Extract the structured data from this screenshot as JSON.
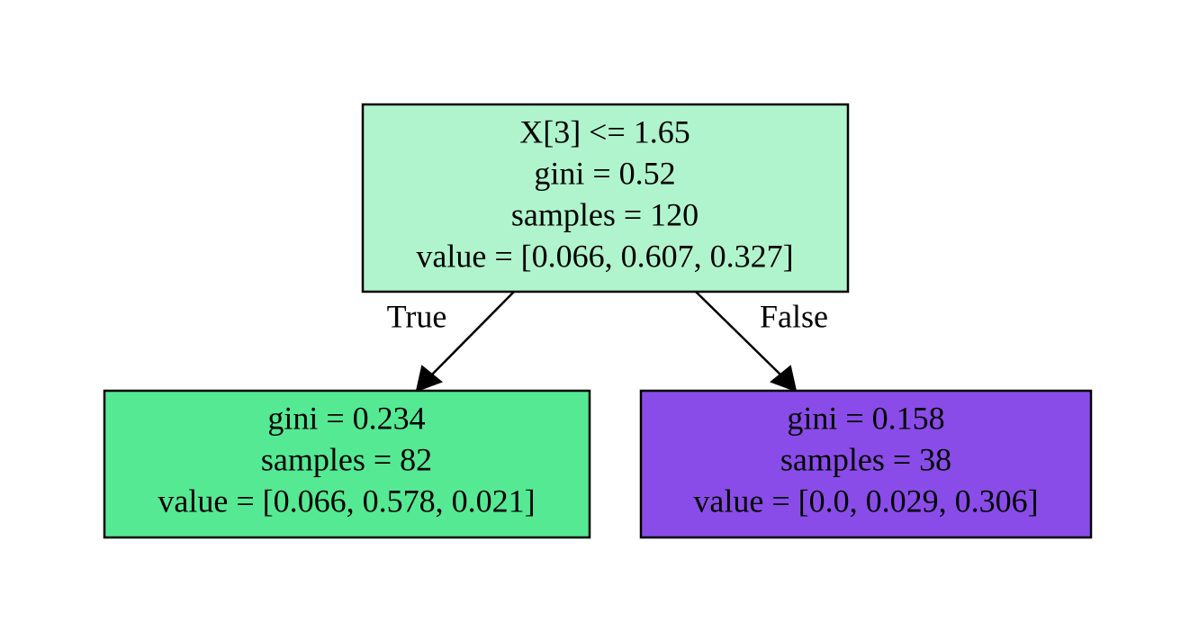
{
  "nodes": [
    {
      "lines": [
        "X[3] <= 1.65",
        "gini = 0.52",
        "samples = 120",
        "value = [0.066, 0.607, 0.327]"
      ]
    },
    {
      "lines": [
        "gini = 0.234",
        "samples = 82",
        "value = [0.066, 0.578, 0.021]"
      ]
    },
    {
      "lines": [
        "gini = 0.158",
        "samples = 38",
        "value = [0.0, 0.029, 0.306]"
      ]
    }
  ],
  "edges": [
    {
      "label": "True"
    },
    {
      "label": "False"
    }
  ]
}
